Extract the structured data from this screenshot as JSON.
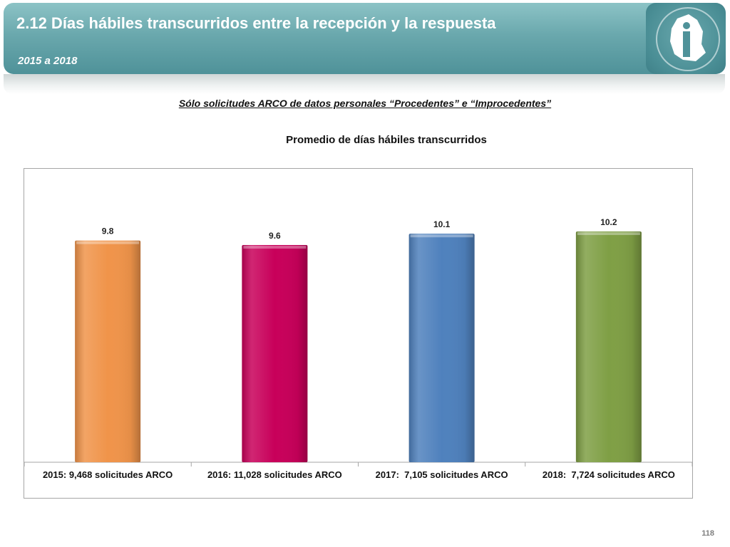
{
  "header": {
    "title": "2.12 Días hábiles transcurridos entre la recepción y la respuesta",
    "subtitle": "2015 a 2018",
    "logo_icon": "info-access-logo-icon"
  },
  "caption": "Sólo solicitudes ARCO de datos personales “Procedentes” e “Improcedentes”",
  "page_number": "118",
  "chart_data": {
    "type": "bar",
    "title": "Promedio de días hábiles transcurridos",
    "categories": [
      "2015: 9,468 solicitudes ARCO",
      "2016: 11,028 solicitudes ARCO",
      "2017:  7,105 solicitudes ARCO",
      "2018:  7,724 solicitudes ARCO"
    ],
    "values": [
      9.8,
      9.6,
      10.1,
      10.2
    ],
    "data_labels": [
      "9.8",
      "9.6",
      "10.1",
      "10.2"
    ],
    "colors": [
      "#f0944a",
      "#c8005a",
      "#4f81bd",
      "#7f9f45"
    ],
    "ylim": [
      0,
      10.2
    ],
    "grid": false,
    "legend": "none"
  }
}
